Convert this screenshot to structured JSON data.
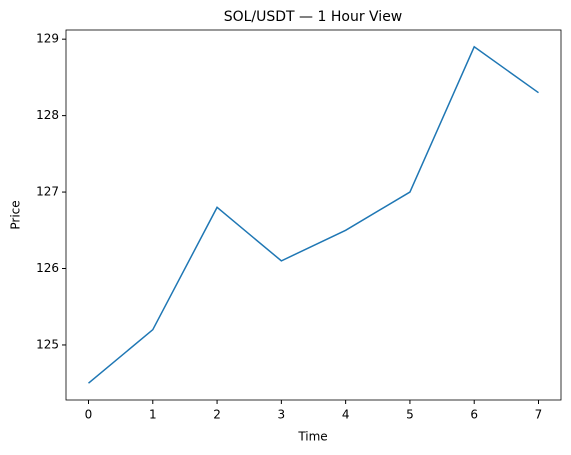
{
  "chart_data": {
    "type": "line",
    "title": "SOL/USDT — 1 Hour View",
    "x_label": "Time",
    "y_label": "Price",
    "x": [
      0,
      1,
      2,
      3,
      4,
      5,
      6,
      7
    ],
    "series": [
      {
        "name": "SOL/USDT",
        "color": "#1f77b4",
        "values": [
          124.5,
          125.2,
          126.8,
          126.1,
          126.5,
          127.0,
          128.9,
          128.3
        ]
      }
    ],
    "xlim": [
      -0.35,
      7.35
    ],
    "ylim": [
      124.28,
      129.12
    ],
    "xticks": [
      0,
      1,
      2,
      3,
      4,
      5,
      6,
      7
    ],
    "yticks": [
      125,
      126,
      127,
      128,
      129
    ],
    "grid": false,
    "legend": false
  }
}
